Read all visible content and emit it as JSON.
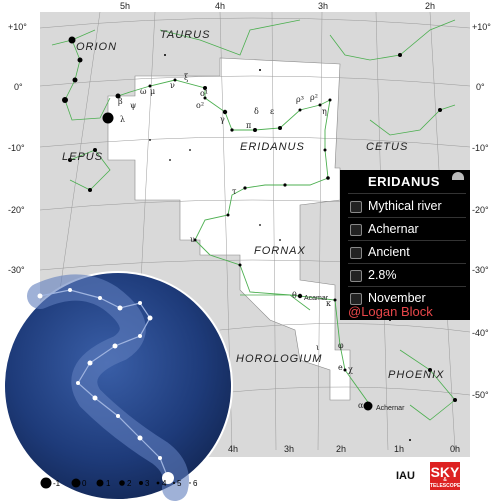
{
  "map": {
    "ra_labels": [
      "5h",
      "4h",
      "3h",
      "2h"
    ],
    "ra_labels_bottom": [
      "4h",
      "3h",
      "2h",
      "1h",
      "0h"
    ],
    "dec_labels_left": [
      "+10°",
      "0°",
      "-10°",
      "-20°",
      "-30°"
    ],
    "dec_labels_right": [
      "+10°",
      "0°",
      "-10°",
      "-20°",
      "-30°",
      "-40°",
      "-50°"
    ],
    "constellations": [
      "TAURUS",
      "ORION",
      "LEPUS",
      "ERIDANUS",
      "CETUS",
      "FORNAX",
      "HOROLOGIUM",
      "PHOENIX"
    ],
    "star_labels": [
      "Acamar",
      "Achernar"
    ],
    "greek_labels": [
      "β",
      "λ",
      "ψ",
      "ω",
      "μ",
      "ν",
      "ξ",
      "ο¹",
      "ο²",
      "γ",
      "π",
      "δ",
      "ε",
      "ρ³",
      "ρ²",
      "η",
      "τ",
      "υ",
      "θ",
      "φ",
      "χ",
      "α",
      "κ",
      "ι",
      "e"
    ],
    "colors": {
      "constellation_area": "#ffffff",
      "background": "#d9d9d9",
      "lines": "#4caf50",
      "grid": "#9a9a9a",
      "accent": "#e8474a"
    }
  },
  "info_panel": {
    "title": "ERIDANUS",
    "rows": [
      {
        "icon": "mythology-icon",
        "text": "Mythical river"
      },
      {
        "icon": "brightest-star-icon",
        "text": "Achernar"
      },
      {
        "icon": "origin-icon",
        "text": "Ancient"
      },
      {
        "icon": "sky-area-icon",
        "text": "2.8%"
      },
      {
        "icon": "visibility-month-icon",
        "text": "November"
      }
    ],
    "credit": "@Logan Block"
  },
  "legend": {
    "magnitudes": [
      "-1",
      "0",
      "1",
      "2",
      "3",
      "4",
      "5",
      "6"
    ]
  },
  "logos": {
    "iau": "IAU",
    "sky": "SKY",
    "sky_sub": "& TELESCOPE"
  }
}
